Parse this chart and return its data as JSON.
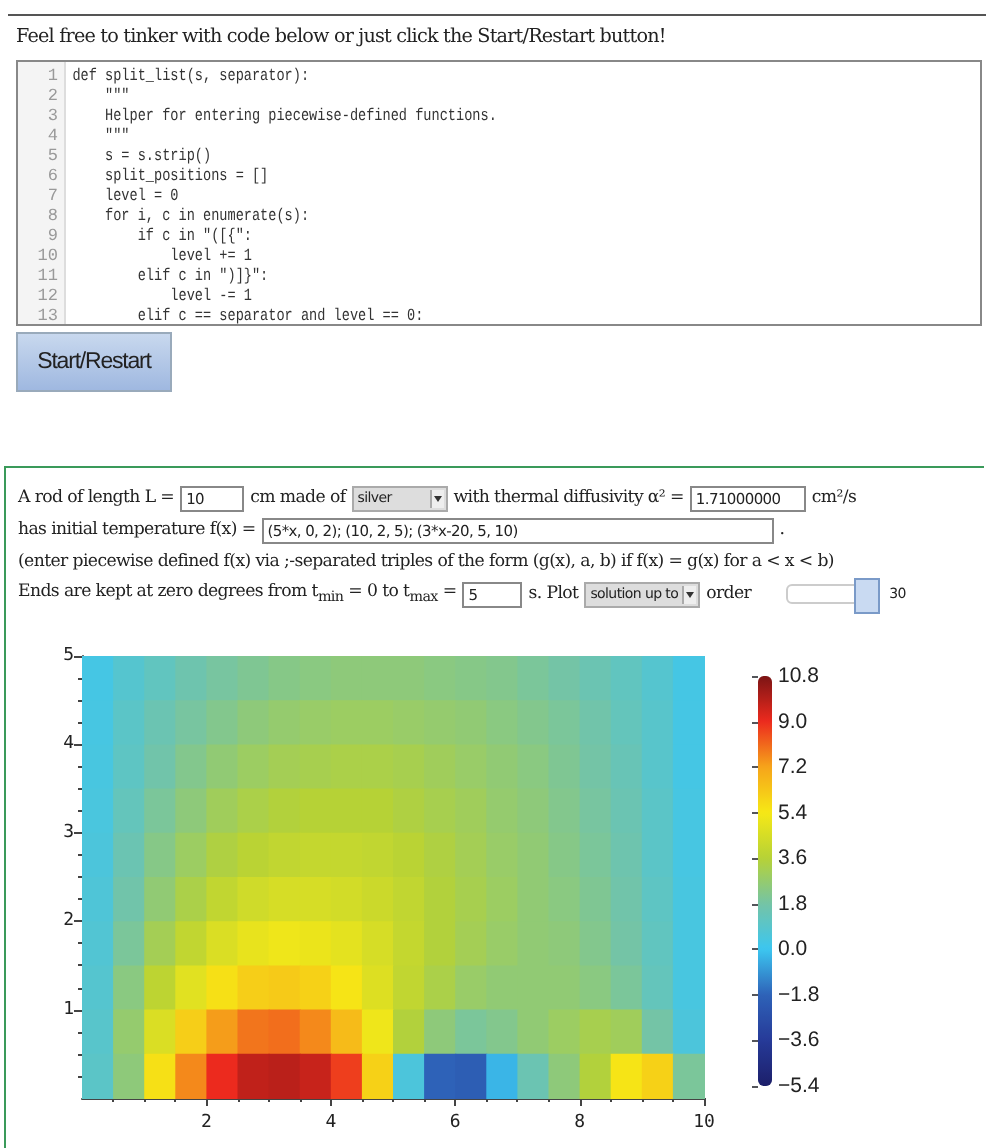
{
  "chart_data": {
    "type": "heatmap",
    "annotations": [
      "Feel free to tinker with code below or just click the Start/Restart button!",
      "def split_list(s, separator):\n    \"\"\"\n    Helper for entering piecewise-defined functions.\n    \"\"\"\n    s = s.strip()\n    split_positions = []\n    level = 0\n    for i, c in enumerate(s):\n        if c in \"([{\":\n            level += 1\n        elif c in \")]}\":\n            level -= 1\n        elif c == separator and level == 0:",
      "Start/Restart",
      "1\n2\n3\n4\n5\n6\n7\n8\n9\n10\n11\n12\n13",
      "A rod of length L =",
      "10",
      "cm made of",
      "silver",
      "with thermal diffusivity α² =",
      "1.71000000",
      "cm²/s",
      "has initial temperature f(x) =",
      "(5*x, 0, 2); (10, 2, 5); (3*x-20, 5, 10)",
      ".",
      "(enter piecewise defined f(x) via ;-separated triples of the form (g(x), a, b) if f(x) = g(x) for a < x < b)",
      "Ends are kept at zero degrees from t$_{min}$ = 0 to t$_{max}$ =",
      "5",
      "s. Plot",
      "solution up to",
      "order",
      "30"
    ],
    "xlim": [
      0,
      10
    ],
    "xticks": [
      2,
      4,
      6,
      8,
      10
    ],
    "ylim": [
      0,
      5
    ],
    "yticks": [
      1,
      2,
      3,
      4,
      5
    ],
    "clim": [
      -5.4,
      10.8
    ],
    "cticks": [
      {
        "value": 10.8,
        "label": "10.8"
      },
      {
        "value": 9,
        "label": "9.0"
      },
      {
        "value": 7.2,
        "label": "7.2"
      },
      {
        "value": 5.4,
        "label": "5.4"
      },
      {
        "value": 3.6,
        "label": "3.6"
      },
      {
        "value": 1.8,
        "label": "1.8"
      },
      {
        "value": 0,
        "label": "0.0"
      },
      {
        "value": -1.8,
        "label": "−1.8"
      },
      {
        "value": -3.6,
        "label": "−3.6"
      },
      {
        "value": -5.4,
        "label": "−5.4"
      }
    ],
    "cells": [
      [
        0.3,
        0.8,
        1.2,
        1.6,
        1.9,
        2.1,
        2.3,
        2.4,
        2.5,
        2.5,
        2.5,
        2.4,
        2.3,
        2.2,
        2.0,
        1.8,
        1.5,
        1.2,
        0.8,
        0.3
      ],
      [
        0.35,
        1.0,
        1.5,
        1.9,
        2.2,
        2.5,
        2.7,
        2.8,
        2.9,
        2.9,
        2.8,
        2.7,
        2.6,
        2.4,
        2.2,
        2.0,
        1.7,
        1.3,
        0.9,
        0.3
      ],
      [
        0.4,
        1.1,
        1.7,
        2.2,
        2.6,
        2.9,
        3.1,
        3.2,
        3.3,
        3.3,
        3.2,
        3.0,
        2.8,
        2.6,
        2.4,
        2.1,
        1.8,
        1.4,
        0.9,
        0.3
      ],
      [
        0.45,
        1.3,
        2.0,
        2.5,
        3.0,
        3.3,
        3.5,
        3.6,
        3.6,
        3.6,
        3.4,
        3.2,
        3.0,
        2.7,
        2.5,
        2.2,
        1.9,
        1.5,
        1.0,
        0.35
      ],
      [
        0.5,
        1.5,
        2.3,
        2.9,
        3.4,
        3.7,
        3.9,
        4.0,
        4.0,
        3.9,
        3.7,
        3.4,
        3.1,
        2.8,
        2.6,
        2.3,
        2.0,
        1.6,
        1.0,
        0.35
      ],
      [
        0.6,
        1.7,
        2.6,
        3.3,
        3.9,
        4.3,
        4.5,
        4.5,
        4.4,
        4.2,
        3.9,
        3.5,
        3.2,
        2.9,
        2.6,
        2.4,
        2.1,
        1.7,
        1.1,
        0.4
      ],
      [
        0.7,
        2.0,
        3.1,
        3.9,
        4.6,
        5.0,
        5.2,
        5.1,
        4.9,
        4.5,
        4.0,
        3.5,
        3.1,
        2.8,
        2.6,
        2.5,
        2.2,
        1.8,
        1.2,
        0.4
      ],
      [
        0.8,
        2.4,
        3.8,
        4.8,
        5.6,
        6.1,
        6.2,
        6.0,
        5.5,
        4.7,
        3.9,
        3.3,
        2.8,
        2.6,
        2.6,
        2.6,
        2.4,
        2.0,
        1.3,
        0.4
      ],
      [
        0.9,
        2.7,
        4.6,
        6.1,
        7.3,
        7.9,
        8.0,
        7.6,
        6.6,
        5.2,
        3.5,
        2.5,
        2.0,
        2.2,
        2.6,
        2.9,
        3.2,
        3.0,
        1.8,
        0.5
      ],
      [
        1.0,
        2.5,
        5.6,
        7.6,
        9.0,
        9.7,
        9.8,
        9.6,
        8.7,
        6.0,
        0.5,
        -1.8,
        -2.0,
        -0.3,
        1.5,
        2.5,
        3.5,
        5.5,
        6.0,
        2.0
      ]
    ]
  }
}
